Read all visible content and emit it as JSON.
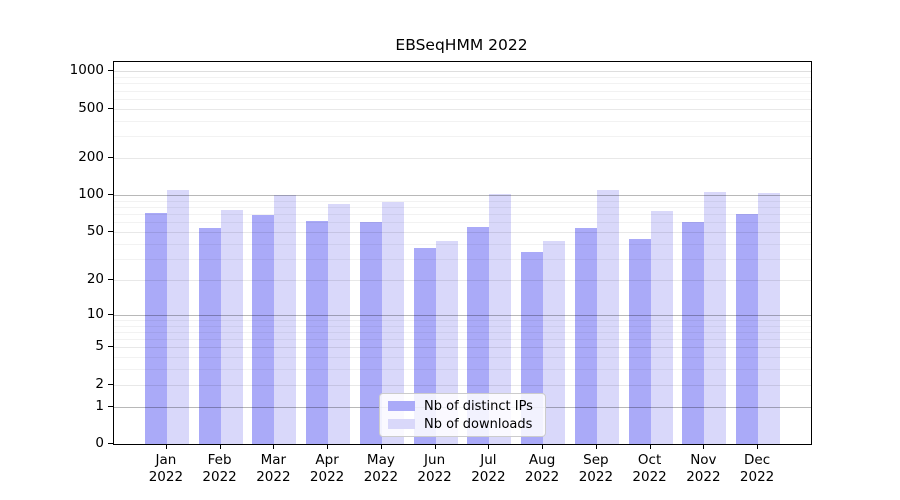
{
  "chart_data": {
    "type": "bar",
    "title": "EBSeqHMM 2022",
    "categories": [
      "Jan 2022",
      "Feb 2022",
      "Mar 2022",
      "Apr 2022",
      "May 2022",
      "Jun 2022",
      "Jul 2022",
      "Aug 2022",
      "Sep 2022",
      "Oct 2022",
      "Nov 2022",
      "Dec 2022"
    ],
    "series": [
      {
        "name": "Nb of distinct IPs",
        "color": "#aaaaf8",
        "values": [
          71,
          54,
          69,
          61,
          60,
          37,
          55,
          34,
          54,
          44,
          60,
          70
        ]
      },
      {
        "name": "Nb of downloads",
        "color": "#d9d8fa",
        "values": [
          110,
          76,
          100,
          85,
          88,
          42,
          102,
          42,
          111,
          74,
          107,
          104
        ]
      }
    ],
    "yscale": "log1p",
    "yticks": [
      0,
      1,
      2,
      5,
      10,
      20,
      50,
      100,
      200,
      500,
      1000
    ],
    "ylim": [
      0,
      1190
    ],
    "xlabel": "",
    "ylabel": "",
    "grid": true,
    "legend_position": "lower-center-inside"
  },
  "colors": {
    "background": "#ffffff",
    "axis": "#000000",
    "grid_decade": "rgba(0,0,0,0.28)",
    "grid_labeled": "rgba(0,0,0,0.09)",
    "grid_minor": "rgba(0,0,0,0.05)",
    "legend_border": "#cccccc"
  }
}
